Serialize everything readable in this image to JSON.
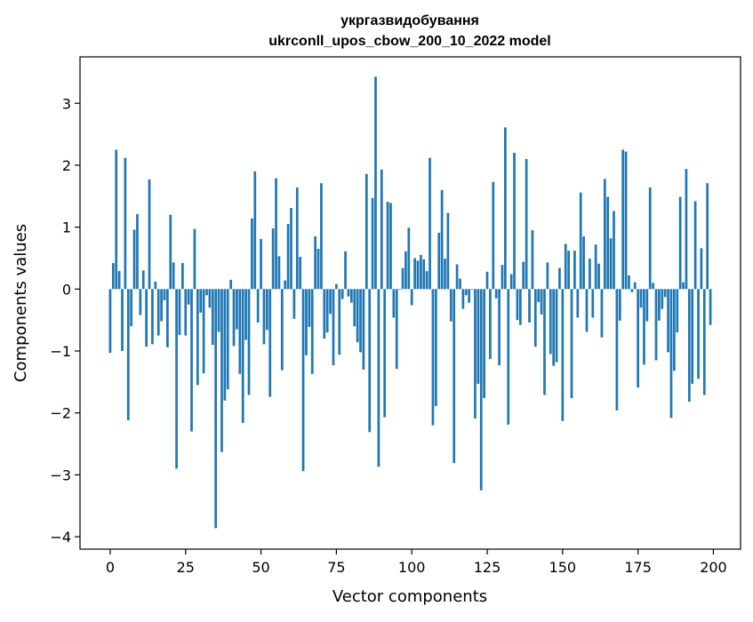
{
  "chart_data": {
    "type": "bar",
    "title": "укргазвидобування",
    "subtitle": "ukrconll_upos_cbow_200_10_2022 model",
    "xlabel": "Vector components",
    "ylabel": "Components values",
    "xlim": [
      -10,
      209
    ],
    "ylim": [
      -4.2,
      3.75
    ],
    "xticks": [
      0,
      25,
      50,
      75,
      100,
      125,
      150,
      175,
      200
    ],
    "yticks": [
      3,
      2,
      1,
      0,
      -1,
      -2,
      -3,
      -4
    ],
    "ytick_labels": [
      "3",
      "2",
      "1",
      "0",
      "−1",
      "−2",
      "−3",
      "−4"
    ],
    "grid": false,
    "colors": {
      "bar": "#1f77b4",
      "axis": "#000000",
      "background": "#ffffff"
    },
    "x": [
      0,
      1,
      2,
      3,
      4,
      5,
      6,
      7,
      8,
      9,
      10,
      11,
      12,
      13,
      14,
      15,
      16,
      17,
      18,
      19,
      20,
      21,
      22,
      23,
      24,
      25,
      26,
      27,
      28,
      29,
      30,
      31,
      32,
      33,
      34,
      35,
      36,
      37,
      38,
      39,
      40,
      41,
      42,
      43,
      44,
      45,
      46,
      47,
      48,
      49,
      50,
      51,
      52,
      53,
      54,
      55,
      56,
      57,
      58,
      59,
      60,
      61,
      62,
      63,
      64,
      65,
      66,
      67,
      68,
      69,
      70,
      71,
      72,
      73,
      74,
      75,
      76,
      77,
      78,
      79,
      80,
      81,
      82,
      83,
      84,
      85,
      86,
      87,
      88,
      89,
      90,
      91,
      92,
      93,
      94,
      95,
      96,
      97,
      98,
      99,
      100,
      101,
      102,
      103,
      104,
      105,
      106,
      107,
      108,
      109,
      110,
      111,
      112,
      113,
      114,
      115,
      116,
      117,
      118,
      119,
      120,
      121,
      122,
      123,
      124,
      125,
      126,
      127,
      128,
      129,
      130,
      131,
      132,
      133,
      134,
      135,
      136,
      137,
      138,
      139,
      140,
      141,
      142,
      143,
      144,
      145,
      146,
      147,
      148,
      149,
      150,
      151,
      152,
      153,
      154,
      155,
      156,
      157,
      158,
      159,
      160,
      161,
      162,
      163,
      164,
      165,
      166,
      167,
      168,
      169,
      170,
      171,
      172,
      173,
      174,
      175,
      176,
      177,
      178,
      179,
      180,
      181,
      182,
      183,
      184,
      185,
      186,
      187,
      188,
      189,
      190,
      191,
      192,
      193,
      194,
      195,
      196,
      197,
      198,
      199
    ],
    "values": [
      -1.03,
      0.42,
      2.25,
      0.29,
      -1.0,
      2.12,
      -2.12,
      -0.6,
      0.96,
      1.21,
      -0.42,
      0.3,
      -0.93,
      1.77,
      -0.89,
      0.12,
      -0.75,
      -0.52,
      -0.18,
      -0.94,
      1.2,
      0.43,
      -2.9,
      -0.74,
      0.42,
      -0.75,
      -0.25,
      -2.3,
      0.97,
      -1.55,
      -0.38,
      -1.36,
      -0.1,
      -0.3,
      -0.9,
      -3.86,
      -0.69,
      -2.63,
      -1.8,
      -1.62,
      0.15,
      -0.92,
      -0.65,
      -1.37,
      -2.16,
      -0.82,
      -1.71,
      1.14,
      1.9,
      -0.54,
      0.81,
      -0.89,
      -0.66,
      -1.74,
      0.98,
      1.79,
      0.53,
      -1.31,
      0.14,
      1.05,
      1.31,
      -0.48,
      1.64,
      0.52,
      -2.94,
      -1.07,
      -0.61,
      -1.37,
      0.85,
      0.65,
      1.71,
      -0.8,
      -0.7,
      -0.4,
      -1.23,
      0.08,
      -1.06,
      -0.16,
      0.61,
      -0.12,
      -0.22,
      -0.6,
      -0.86,
      -1.02,
      -1.3,
      1.86,
      -2.31,
      1.47,
      3.43,
      -2.87,
      1.93,
      -2.07,
      1.41,
      1.39,
      -0.46,
      -1.29,
      -0.01,
      0.34,
      0.61,
      0.99,
      -0.26,
      0.5,
      0.46,
      0.55,
      0.48,
      0.29,
      2.12,
      -2.2,
      -1.89,
      0.91,
      1.6,
      0.49,
      1.23,
      -0.52,
      -2.81,
      0.4,
      0.17,
      -0.32,
      -0.1,
      -0.22,
      -0.01,
      -2.09,
      -1.53,
      -3.25,
      -1.76,
      0.28,
      -1.13,
      1.73,
      -0.15,
      -1.23,
      0.39,
      2.61,
      -2.19,
      0.24,
      2.2,
      -0.5,
      -0.58,
      0.44,
      2.1,
      -0.54,
      0.95,
      -0.93,
      -0.21,
      -0.41,
      -1.71,
      0.43,
      -1.05,
      -1.24,
      -1.18,
      0.34,
      -2.13,
      0.73,
      0.62,
      -1.76,
      0.62,
      -0.46,
      1.56,
      0.85,
      -0.69,
      0.49,
      -0.46,
      0.72,
      0.41,
      -0.78,
      1.78,
      1.49,
      0.82,
      1.26,
      -1.96,
      -0.51,
      2.25,
      2.22,
      0.22,
      -0.05,
      0.11,
      -1.59,
      -0.3,
      -1.22,
      -0.52,
      1.64,
      0.1,
      -1.15,
      -0.51,
      -0.32,
      -0.13,
      -1.02,
      -2.08,
      -1.32,
      -0.7,
      1.49,
      0.11,
      1.94,
      -1.82,
      -1.53,
      1.42,
      -1.45,
      0.66,
      -1.71,
      1.71,
      -0.58
    ]
  }
}
